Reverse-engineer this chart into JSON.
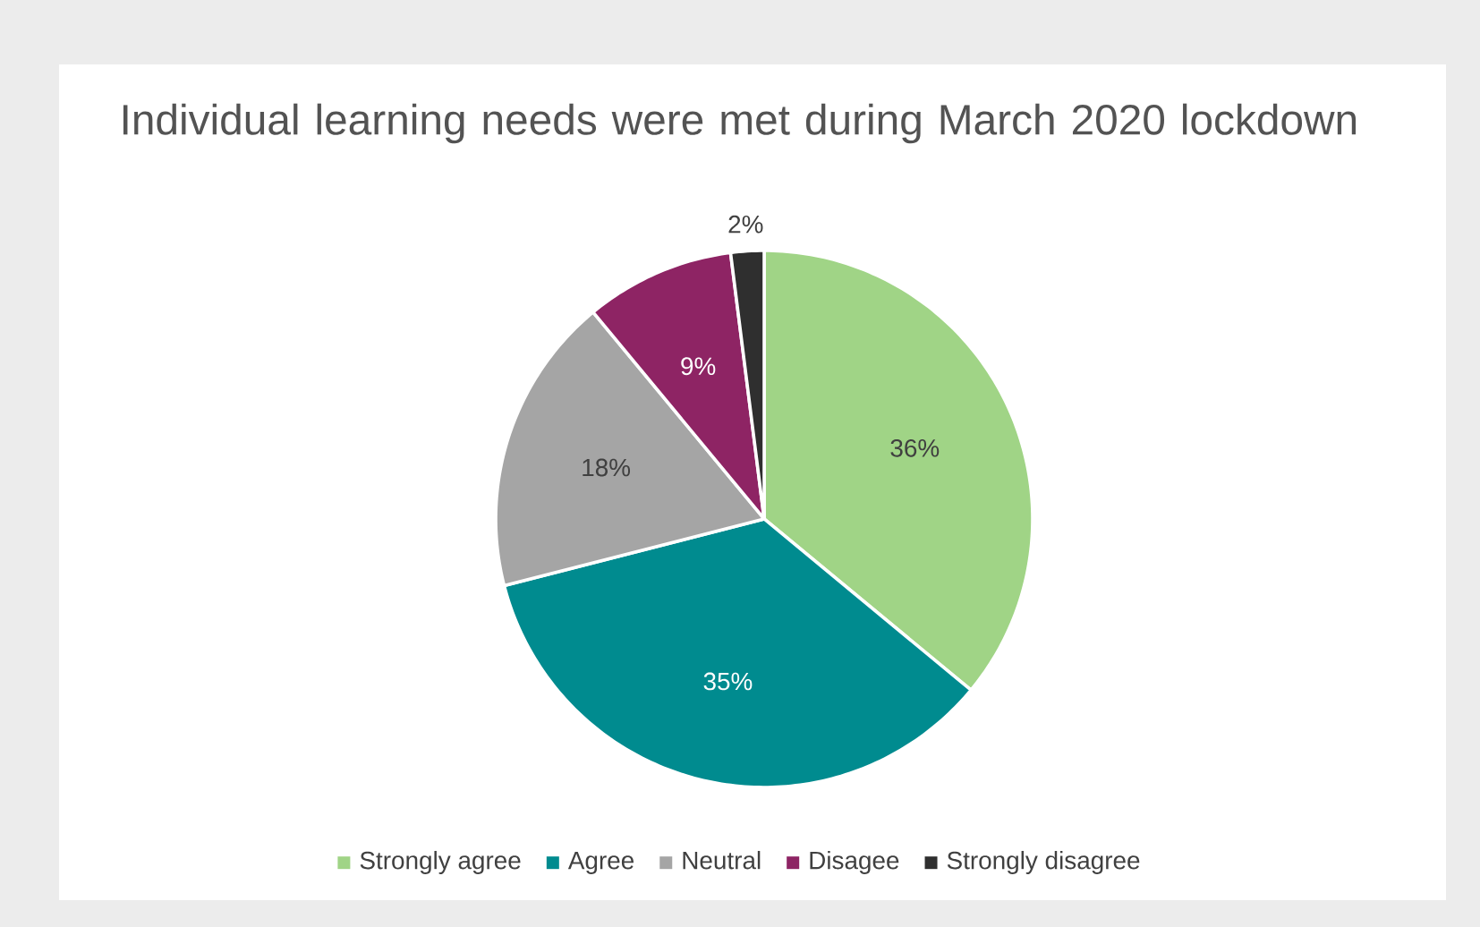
{
  "chart_data": {
    "type": "pie",
    "title": "Individual learning needs were met during March 2020 lockdown",
    "categories": [
      "Strongly agree",
      "Agree",
      "Neutral",
      "Disagee",
      "Strongly disagree"
    ],
    "values": [
      36,
      35,
      18,
      9,
      2
    ],
    "colors": [
      "#a0d486",
      "#008b8f",
      "#a5a5a5",
      "#8e2464",
      "#2f2f2f"
    ],
    "value_labels": [
      "36%",
      "35%",
      "18%",
      "9%",
      "2%"
    ],
    "legend": "bottom"
  }
}
